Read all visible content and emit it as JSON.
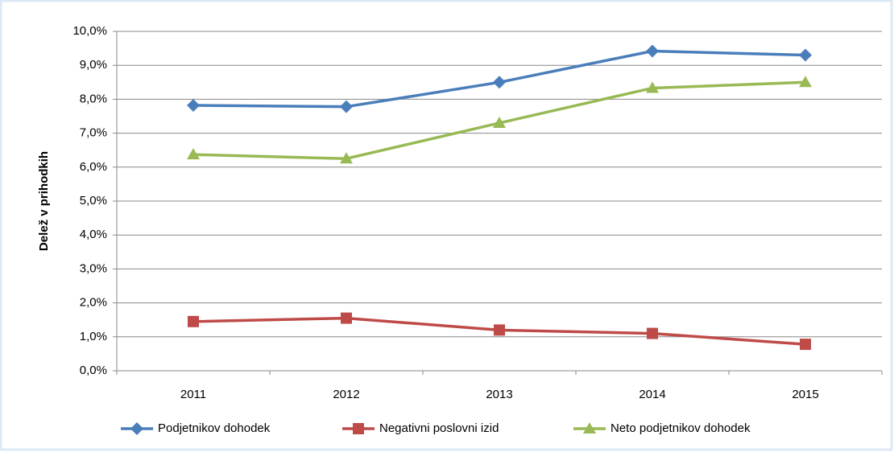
{
  "chart_data": {
    "type": "line",
    "y_label": "Delež v prihodkih",
    "categories": [
      "2011",
      "2012",
      "2013",
      "2014",
      "2015"
    ],
    "series": [
      {
        "name": "Podjetnikov dohodek",
        "color": "#4a7ebb",
        "marker": "diamond",
        "values": [
          7.82,
          7.78,
          8.5,
          9.42,
          9.3
        ]
      },
      {
        "name": "Negativni poslovni izid",
        "color": "#be4b48",
        "marker": "square",
        "values": [
          1.45,
          1.55,
          1.2,
          1.1,
          0.78
        ]
      },
      {
        "name": "Neto podjetnikov dohodek",
        "color": "#98b954",
        "marker": "triangle",
        "values": [
          6.37,
          6.25,
          7.3,
          8.33,
          8.5
        ]
      }
    ],
    "ylim": [
      0,
      10
    ],
    "yticks": [
      {
        "value": 0,
        "label": "0,0%"
      },
      {
        "value": 1,
        "label": "1,0%"
      },
      {
        "value": 2,
        "label": "2,0%"
      },
      {
        "value": 3,
        "label": "3,0%"
      },
      {
        "value": 4,
        "label": "4,0%"
      },
      {
        "value": 5,
        "label": "5,0%"
      },
      {
        "value": 6,
        "label": "6,0%"
      },
      {
        "value": 7,
        "label": "7,0%"
      },
      {
        "value": 8,
        "label": "8,0%"
      },
      {
        "value": 9,
        "label": "9,0%"
      },
      {
        "value": 10,
        "label": "10,0%"
      }
    ],
    "grid": true,
    "legend": "bottom"
  }
}
